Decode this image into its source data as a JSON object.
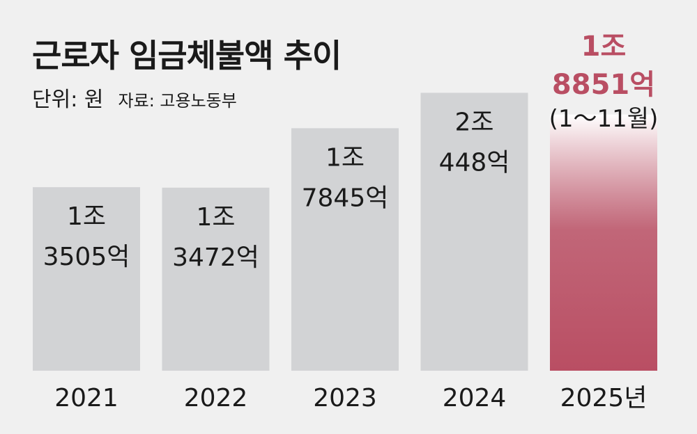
{
  "chart_data": {
    "type": "bar",
    "title": "근로자 임금체불액 추이",
    "unit_label": "단위: 원",
    "source_label": "자료: 고용노동부",
    "categories": [
      "2021",
      "2022",
      "2023",
      "2024",
      "2025년"
    ],
    "values": [
      13505,
      13472,
      17845,
      20448,
      18851
    ],
    "value_unit": "억 원",
    "value_labels": [
      [
        "1조",
        "3505억"
      ],
      [
        "1조",
        "3472억"
      ],
      [
        "1조",
        "7845억"
      ],
      [
        "2조",
        "448억"
      ],
      [
        "1조",
        "8851억"
      ]
    ],
    "notes": [
      "",
      "",
      "",
      "",
      "(1～11월)"
    ],
    "highlight_index": 4,
    "ylim": [
      0,
      26000
    ],
    "colors": {
      "bar": "#d2d3d5",
      "highlight": "#b94e63",
      "highlight_top": "#ffffff",
      "background": "#f0f0f0"
    },
    "grid": false,
    "legend": "none"
  }
}
